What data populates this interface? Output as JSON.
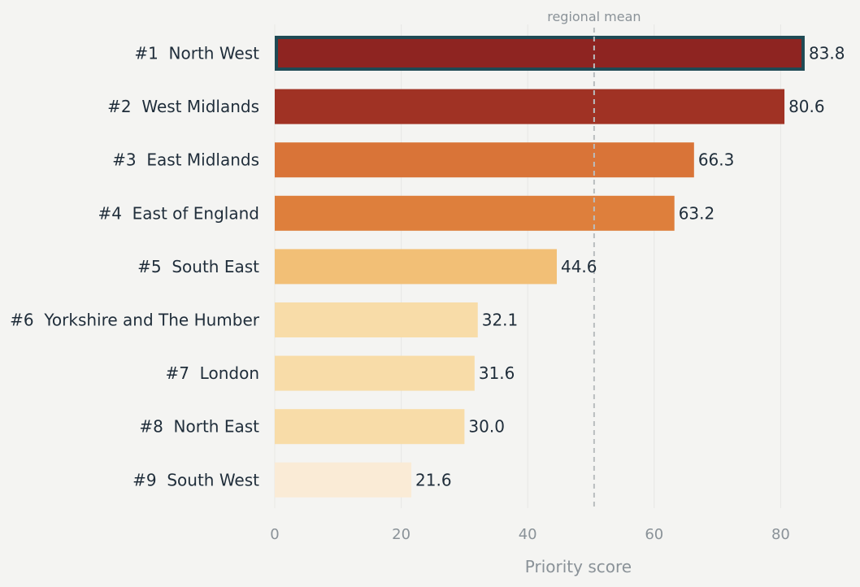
{
  "chart_data": {
    "type": "bar",
    "orientation": "horizontal",
    "categories": [
      "#1  North West",
      "#2  West Midlands",
      "#3  East Midlands",
      "#4  East of England",
      "#5  South East",
      "#6  Yorkshire and The Humber",
      "#7  London",
      "#8  North East",
      "#9  South West"
    ],
    "values": [
      83.8,
      80.6,
      66.3,
      63.2,
      44.6,
      32.1,
      31.6,
      30.0,
      21.6
    ],
    "value_labels": [
      "83.8",
      "80.6",
      "66.3",
      "63.2",
      "44.6",
      "32.1",
      "31.6",
      "30.0",
      "21.6"
    ],
    "colors": [
      "#8e2421",
      "#a03224",
      "#d97438",
      "#de7f3c",
      "#f2bf76",
      "#f8dca8",
      "#f8dca8",
      "#f8dca8",
      "#faebd6"
    ],
    "highlight_index": 0,
    "highlight_color": "#1f4a55",
    "xlabel": "Priority score",
    "ylabel": "",
    "xlim": [
      0,
      88
    ],
    "xticks": [
      0,
      20,
      40,
      60,
      80
    ],
    "xtick_labels": [
      "0",
      "20",
      "40",
      "60",
      "80"
    ],
    "grid": "vertical",
    "reference_line": {
      "label": "regional mean",
      "value": 50.5
    }
  }
}
